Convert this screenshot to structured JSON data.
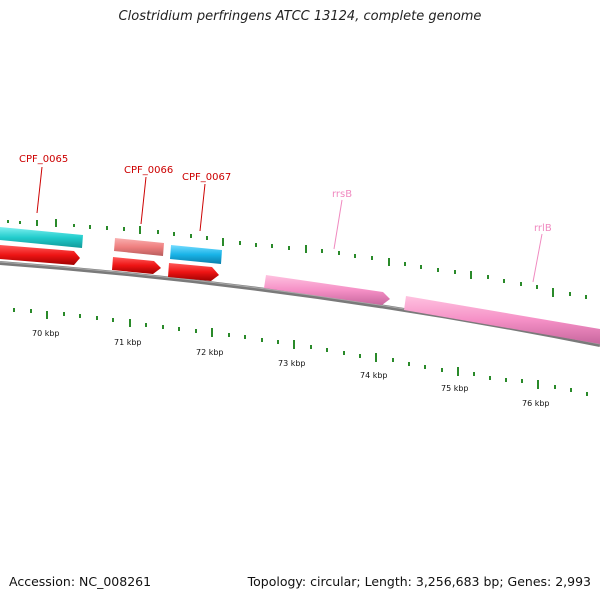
{
  "title": "Clostridium perfringens ATCC 13124, complete genome",
  "footer": {
    "accession": "Accession: NC_008261",
    "summary": "Topology: circular; Length: 3,256,683 bp; Genes: 2,993"
  },
  "colors": {
    "backbone": "#7a7a7a",
    "gc_ticks": "#2a8a2a",
    "cds": "#ee1c1c",
    "cds_label": "#cc0000",
    "rrna": "#f48cc4",
    "rrna_label": "#f08ac0",
    "cog_cyan": "#22cccc",
    "cog_salmon": "#ef7f7f",
    "cog_blue": "#19b4e8"
  },
  "scale_labels": [
    "70 kbp",
    "71 kbp",
    "72 kbp",
    "73 kbp",
    "74 kbp",
    "75 kbp",
    "76 kbp"
  ],
  "features": [
    {
      "name": "CPF_0065",
      "type": "CDS",
      "strand": "+",
      "category": "cyan"
    },
    {
      "name": "CPF_0066",
      "type": "CDS",
      "strand": "+",
      "category": "salmon"
    },
    {
      "name": "CPF_0067",
      "type": "CDS",
      "strand": "+",
      "category": "blue"
    },
    {
      "name": "rrsB",
      "type": "rRNA",
      "strand": "+"
    },
    {
      "name": "rrlB",
      "type": "rRNA",
      "strand": "+"
    }
  ]
}
